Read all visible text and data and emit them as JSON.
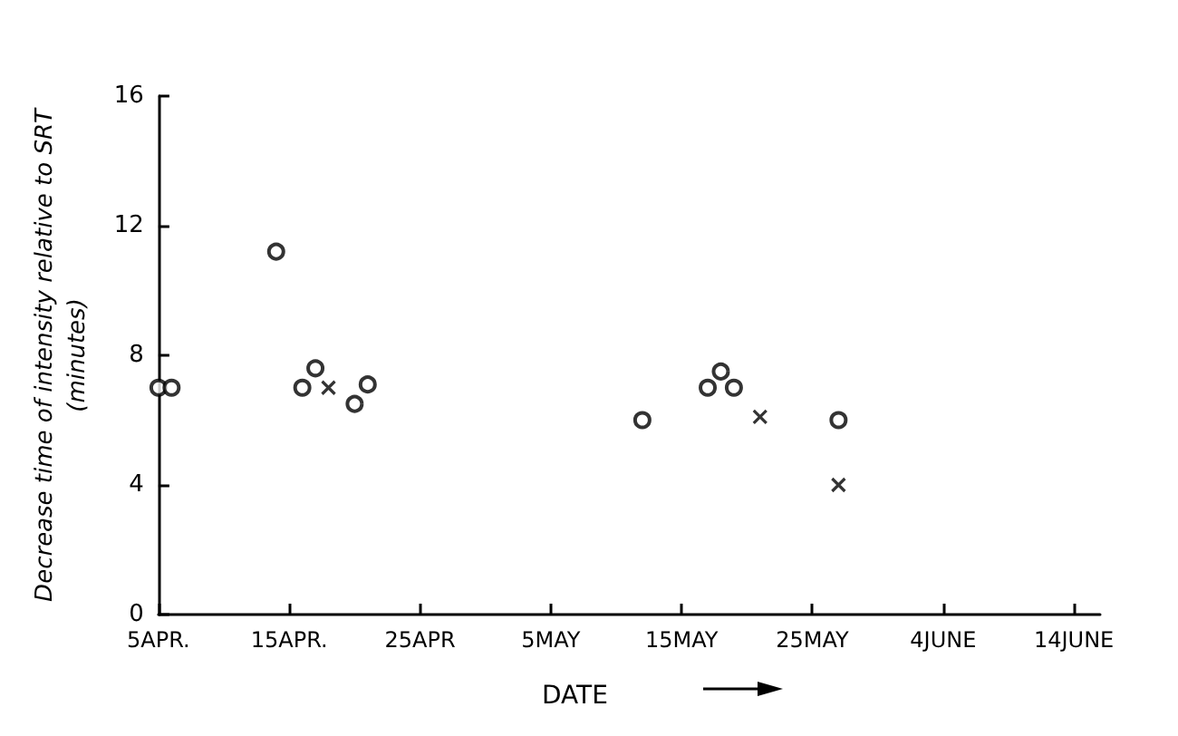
{
  "chart_data": {
    "type": "scatter",
    "xlabel": "DATE",
    "ylabel": "Decrease time of intensity relative to SRT\n(minutes)",
    "series": [
      {
        "marker": "circle",
        "color": "#000000",
        "x": [
          "--04-05",
          "--04-06",
          "--04-14",
          "--04-16",
          "--04-17",
          "--04-20",
          "--04-21",
          "--05-12",
          "--05-17",
          "--05-18",
          "--05-19",
          "--05-27"
        ],
        "values": [
          7,
          7,
          11.2,
          7,
          7.6,
          6.5,
          7.1,
          6,
          7,
          7.5,
          7,
          6
        ]
      },
      {
        "marker": "cross",
        "color": "#000000",
        "x": [
          "--04-18",
          "--05-21",
          "--05-27"
        ],
        "values": [
          7,
          6.1,
          4
        ]
      }
    ],
    "xlim": [
      "--04-05",
      "--06-16"
    ],
    "xticks": [
      {
        "value": "--04-05",
        "label": "5APR."
      },
      {
        "value": "--04-15",
        "label": "15APR."
      },
      {
        "value": "--04-25",
        "label": "25APR"
      },
      {
        "value": "--05-05",
        "label": "5MAY"
      },
      {
        "value": "--05-15",
        "label": "15MAY"
      },
      {
        "value": "--05-25",
        "label": "25MAY"
      },
      {
        "value": "--06-04",
        "label": "4JUNE"
      },
      {
        "value": "--06-14",
        "label": "14JUNE"
      }
    ],
    "ylim": [
      0,
      16
    ],
    "yticks": [
      0,
      4,
      8,
      12,
      16
    ],
    "grid": false
  }
}
